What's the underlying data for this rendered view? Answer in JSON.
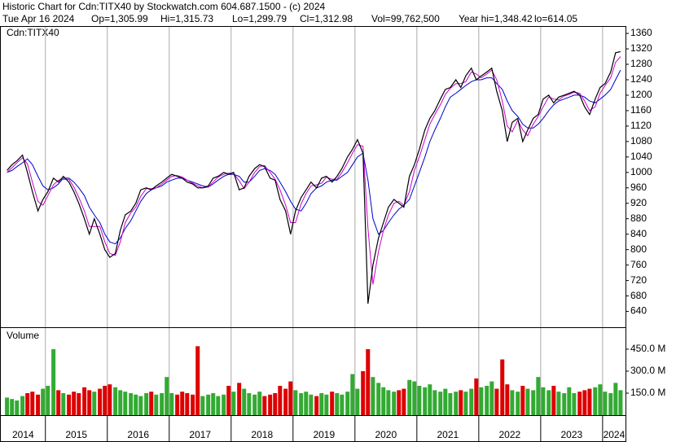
{
  "header": {
    "title": "Historic Chart for Cdn:TITX40 by Stockwatch.com 604.687.1500 - (c) 2024",
    "date": "Tue Apr 16 2024",
    "fields": [
      "Op=1,305.99",
      "Hi=1,315.73",
      "Lo=1,299.79",
      "Cl=1,312.98",
      "Vol=99,762,500",
      "Year hi=1,348.42",
      "lo=614.05"
    ]
  },
  "chart_data": [
    {
      "type": "line",
      "label": "Cdn:TITX40",
      "x": [
        2014.38,
        2014.46,
        2014.54,
        2014.63,
        2014.71,
        2014.79,
        2014.88,
        2014.96,
        2015.04,
        2015.13,
        2015.21,
        2015.29,
        2015.38,
        2015.46,
        2015.54,
        2015.63,
        2015.71,
        2015.79,
        2015.88,
        2015.96,
        2016.04,
        2016.13,
        2016.21,
        2016.29,
        2016.38,
        2016.46,
        2016.54,
        2016.63,
        2016.71,
        2016.79,
        2016.88,
        2016.96,
        2017.04,
        2017.13,
        2017.21,
        2017.29,
        2017.38,
        2017.46,
        2017.54,
        2017.63,
        2017.71,
        2017.79,
        2017.88,
        2017.96,
        2018.04,
        2018.13,
        2018.21,
        2018.29,
        2018.38,
        2018.46,
        2018.54,
        2018.63,
        2018.71,
        2018.79,
        2018.88,
        2018.96,
        2019.04,
        2019.13,
        2019.21,
        2019.29,
        2019.38,
        2019.46,
        2019.54,
        2019.63,
        2019.71,
        2019.79,
        2019.88,
        2019.96,
        2020.04,
        2020.13,
        2020.21,
        2020.29,
        2020.38,
        2020.46,
        2020.54,
        2020.63,
        2020.71,
        2020.79,
        2020.88,
        2020.96,
        2021.04,
        2021.13,
        2021.21,
        2021.29,
        2021.38,
        2021.46,
        2021.54,
        2021.63,
        2021.71,
        2021.79,
        2021.88,
        2021.96,
        2022.04,
        2022.13,
        2022.21,
        2022.29,
        2022.38,
        2022.46,
        2022.54,
        2022.63,
        2022.71,
        2022.79,
        2022.88,
        2022.96,
        2023.04,
        2023.13,
        2023.21,
        2023.29,
        2023.38,
        2023.46,
        2023.54,
        2023.63,
        2023.71,
        2023.79,
        2023.88,
        2023.96,
        2024.04,
        2024.13,
        2024.21,
        2024.29
      ],
      "series": [
        {
          "color": "#000000",
          "values": [
            1005,
            1020,
            1030,
            1045,
            1000,
            950,
            900,
            930,
            950,
            985,
            975,
            990,
            975,
            950,
            920,
            880,
            840,
            880,
            840,
            800,
            780,
            790,
            850,
            890,
            900,
            920,
            955,
            960,
            955,
            965,
            975,
            985,
            995,
            990,
            985,
            975,
            970,
            960,
            960,
            965,
            985,
            990,
            1000,
            995,
            1000,
            955,
            960,
            990,
            1010,
            1020,
            1015,
            985,
            980,
            930,
            900,
            840,
            900,
            935,
            955,
            975,
            960,
            985,
            990,
            975,
            990,
            1010,
            1040,
            1060,
            1085,
            1050,
            660,
            760,
            830,
            870,
            910,
            930,
            920,
            910,
            990,
            1020,
            1060,
            1110,
            1140,
            1160,
            1190,
            1215,
            1220,
            1240,
            1220,
            1250,
            1270,
            1240,
            1250,
            1260,
            1270,
            1210,
            1160,
            1080,
            1130,
            1140,
            1080,
            1110,
            1140,
            1150,
            1190,
            1200,
            1180,
            1195,
            1200,
            1205,
            1210,
            1200,
            1170,
            1150,
            1190,
            1220,
            1230,
            1260,
            1310,
            1313
          ]
        },
        {
          "color": "#cc00cc",
          "values": [
            1000,
            1012,
            1025,
            1038,
            1022,
            975,
            925,
            915,
            940,
            968,
            980,
            982,
            982,
            962,
            935,
            900,
            860,
            860,
            860,
            820,
            790,
            785,
            820,
            870,
            895,
            910,
            938,
            958,
            958,
            960,
            970,
            980,
            990,
            992,
            988,
            980,
            972,
            965,
            960,
            962,
            975,
            988,
            995,
            998,
            998,
            978,
            958,
            975,
            1000,
            1015,
            1018,
            1000,
            982,
            955,
            915,
            870,
            870,
            918,
            945,
            965,
            968,
            972,
            988,
            982,
            982,
            1000,
            1025,
            1050,
            1072,
            1068,
            855,
            710,
            795,
            850,
            890,
            920,
            925,
            915,
            950,
            1005,
            1040,
            1085,
            1125,
            1150,
            1175,
            1202,
            1218,
            1230,
            1230,
            1235,
            1260,
            1255,
            1245,
            1255,
            1265,
            1240,
            1185,
            1120,
            1105,
            1135,
            1110,
            1095,
            1125,
            1145,
            1170,
            1195,
            1190,
            1188,
            1198,
            1202,
            1208,
            1205,
            1185,
            1160,
            1170,
            1205,
            1225,
            1245,
            1285,
            1300
          ]
        },
        {
          "color": "#0000cc",
          "values": [
            1000,
            1005,
            1015,
            1025,
            1035,
            1020,
            990,
            965,
            955,
            960,
            970,
            985,
            985,
            975,
            960,
            940,
            910,
            890,
            870,
            840,
            820,
            815,
            830,
            855,
            875,
            900,
            925,
            945,
            955,
            960,
            965,
            975,
            980,
            985,
            985,
            980,
            975,
            970,
            965,
            962,
            970,
            980,
            990,
            995,
            995,
            990,
            975,
            975,
            990,
            1005,
            1010,
            1005,
            995,
            975,
            950,
            925,
            905,
            900,
            920,
            945,
            960,
            965,
            975,
            980,
            980,
            990,
            1000,
            1020,
            1040,
            1050,
            980,
            880,
            840,
            850,
            870,
            890,
            905,
            915,
            930,
            965,
            1000,
            1040,
            1080,
            1110,
            1140,
            1170,
            1195,
            1205,
            1215,
            1225,
            1235,
            1240,
            1240,
            1245,
            1245,
            1230,
            1215,
            1185,
            1160,
            1145,
            1125,
            1115,
            1115,
            1125,
            1140,
            1160,
            1175,
            1185,
            1190,
            1195,
            1200,
            1200,
            1195,
            1185,
            1180,
            1190,
            1200,
            1215,
            1240,
            1265
          ]
        }
      ],
      "xlim": [
        2014.28,
        2024.37
      ],
      "xticks": [
        2014,
        2015,
        2016,
        2017,
        2018,
        2019,
        2020,
        2021,
        2022,
        2023,
        2024
      ],
      "ylim": [
        599,
        1377
      ],
      "yticks": [
        640,
        680,
        720,
        760,
        800,
        840,
        880,
        920,
        960,
        1000,
        1040,
        1080,
        1120,
        1160,
        1200,
        1240,
        1280,
        1320,
        1360
      ],
      "year_lines": true
    },
    {
      "type": "bar",
      "title": "Volume",
      "up_color": "#33aa33",
      "down_color": "#dd0000",
      "values": [
        120,
        110,
        100,
        130,
        150,
        160,
        140,
        180,
        200,
        450,
        170,
        150,
        140,
        160,
        150,
        190,
        170,
        160,
        180,
        200,
        210,
        190,
        170,
        160,
        150,
        140,
        130,
        150,
        160,
        140,
        150,
        260,
        150,
        140,
        160,
        150,
        140,
        470,
        130,
        140,
        150,
        130,
        140,
        200,
        160,
        220,
        180,
        150,
        140,
        160,
        130,
        140,
        150,
        200,
        180,
        230,
        170,
        150,
        160,
        140,
        130,
        150,
        140,
        160,
        150,
        140,
        160,
        280,
        180,
        300,
        450,
        260,
        220,
        190,
        170,
        160,
        170,
        180,
        240,
        230,
        200,
        190,
        210,
        170,
        160,
        180,
        150,
        160,
        170,
        160,
        180,
        250,
        190,
        200,
        230,
        180,
        380,
        210,
        170,
        160,
        200,
        180,
        170,
        260,
        190,
        170,
        200,
        160,
        150,
        190,
        150,
        160,
        170,
        180,
        190,
        210,
        160,
        150,
        220,
        170
      ],
      "ylim": [
        0,
        594
      ],
      "yticks": [
        {
          "value": 150,
          "label": "150.0 M"
        },
        {
          "value": 300,
          "label": "300.0 M"
        },
        {
          "value": 450,
          "label": "450.0 M"
        }
      ]
    }
  ]
}
